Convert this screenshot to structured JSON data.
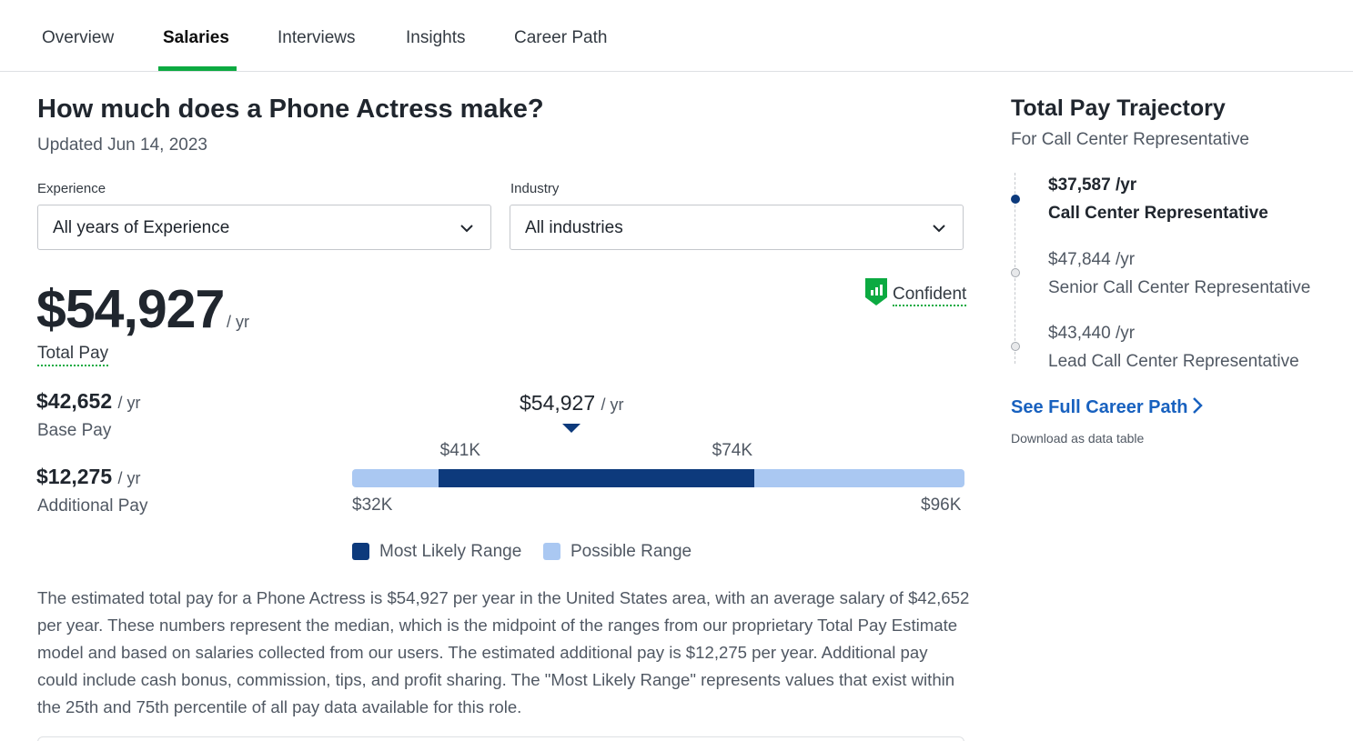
{
  "tabs": [
    {
      "label": "Overview",
      "active": false
    },
    {
      "label": "Salaries",
      "active": true
    },
    {
      "label": "Interviews",
      "active": false
    },
    {
      "label": "Insights",
      "active": false
    },
    {
      "label": "Career Path",
      "active": false
    }
  ],
  "header": {
    "title": "How much does a Phone Actress make?",
    "updated": "Updated Jun 14, 2023"
  },
  "filters": {
    "experience": {
      "label": "Experience",
      "value": "All years of Experience"
    },
    "industry": {
      "label": "Industry",
      "value": "All industries"
    }
  },
  "confidence": {
    "label": "Confident",
    "icon": "signal-bars-shield-icon"
  },
  "total_pay": {
    "amount": "$54,927",
    "unit": "/ yr",
    "label": "Total Pay"
  },
  "base_pay": {
    "amount": "$42,652",
    "unit": "/ yr",
    "label": "Base Pay"
  },
  "additional_pay": {
    "amount": "$12,275",
    "unit": "/ yr",
    "label": "Additional Pay"
  },
  "chart_data": {
    "type": "range",
    "min": 32000,
    "max": 96000,
    "likely_low": 41000,
    "likely_high": 74000,
    "median": 54927,
    "labels": {
      "median": "$54,927",
      "median_unit": "/ yr",
      "likely_low": "$41K",
      "likely_high": "$74K",
      "min": "$32K",
      "max": "$96K"
    },
    "legend": [
      {
        "label": "Most Likely Range",
        "color": "#0d3a7c"
      },
      {
        "label": "Possible Range",
        "color": "#aac8f2"
      }
    ]
  },
  "description": "The estimated total pay for a Phone Actress is $54,927 per year in the United States area, with an average salary of $42,652 per year. These numbers represent the median, which is the midpoint of the ranges from our proprietary Total Pay Estimate model and based on salaries collected from our users. The estimated additional pay is $12,275 per year. Additional pay could include cash bonus, commission, tips, and profit sharing. The \"Most Likely Range\" represents values that exist within the 25th and 75th percentile of all pay data available for this role.",
  "trajectory": {
    "title": "Total Pay Trajectory",
    "subtitle": "For Call Center Representative",
    "items": [
      {
        "amount": "$37,587 /yr",
        "role": "Call Center Representative",
        "active": true
      },
      {
        "amount": "$47,844 /yr",
        "role": "Senior Call Center Representative",
        "active": false
      },
      {
        "amount": "$43,440 /yr",
        "role": "Lead Call Center Representative",
        "active": false
      }
    ],
    "link": "See Full Career Path",
    "download": "Download as data table"
  },
  "colors": {
    "accent_green": "#0caa41",
    "dark_blue": "#0d3a7c",
    "light_blue": "#aac8f2",
    "link_blue": "#1861bf"
  }
}
